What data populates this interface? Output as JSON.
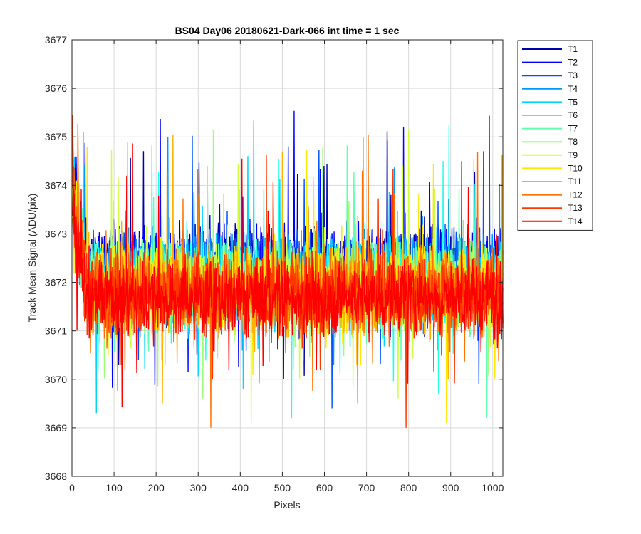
{
  "chart_data": {
    "type": "line",
    "title": "BS04 Day06 20180621-Dark-066 int time = 1 sec",
    "xlabel": "Pixels",
    "ylabel": "Track Mean Signal (ADU/pix)",
    "xlim": [
      0,
      1024
    ],
    "ylim": [
      3668,
      3677
    ],
    "xticks": [
      0,
      100,
      200,
      300,
      400,
      500,
      600,
      700,
      800,
      900,
      1000
    ],
    "yticks": [
      3668,
      3669,
      3670,
      3671,
      3672,
      3673,
      3674,
      3675,
      3676,
      3677
    ],
    "grid": true,
    "legend_position": "outside-top-right",
    "data_description": "Each of 14 tracks is a noisy signal over pixels 1-1024, centered near 3671.9 ADU/pix with fluctuations roughly between 3669 and 3675; values are elevated near 3674-3676 for the first ~30 pixels.",
    "series": [
      {
        "name": "T1",
        "color": "#0000a8",
        "mean": 3672.3,
        "spread": 1.1
      },
      {
        "name": "T2",
        "color": "#0000ff",
        "mean": 3672.3,
        "spread": 1.1
      },
      {
        "name": "T3",
        "color": "#0050ff",
        "mean": 3672.2,
        "spread": 1.1
      },
      {
        "name": "T4",
        "color": "#0098ff",
        "mean": 3672.1,
        "spread": 1.1
      },
      {
        "name": "T5",
        "color": "#00d4ff",
        "mean": 3672.1,
        "spread": 1.1
      },
      {
        "name": "T6",
        "color": "#20ffe8",
        "mean": 3672.0,
        "spread": 1.1
      },
      {
        "name": "T7",
        "color": "#60ffb0",
        "mean": 3672.0,
        "spread": 1.1
      },
      {
        "name": "T8",
        "color": "#98ff78",
        "mean": 3671.9,
        "spread": 1.1
      },
      {
        "name": "T9",
        "color": "#d0ff40",
        "mean": 3671.9,
        "spread": 1.1
      },
      {
        "name": "T10",
        "color": "#ffe800",
        "mean": 3671.9,
        "spread": 1.1
      },
      {
        "name": "T11",
        "color": "#ffb000",
        "mean": 3671.8,
        "spread": 1.1
      },
      {
        "name": "T12",
        "color": "#ff7000",
        "mean": 3671.8,
        "spread": 1.1
      },
      {
        "name": "T13",
        "color": "#ff3800",
        "mean": 3671.8,
        "spread": 1.1
      },
      {
        "name": "T14",
        "color": "#ff0000",
        "mean": 3671.7,
        "spread": 1.0
      }
    ]
  }
}
